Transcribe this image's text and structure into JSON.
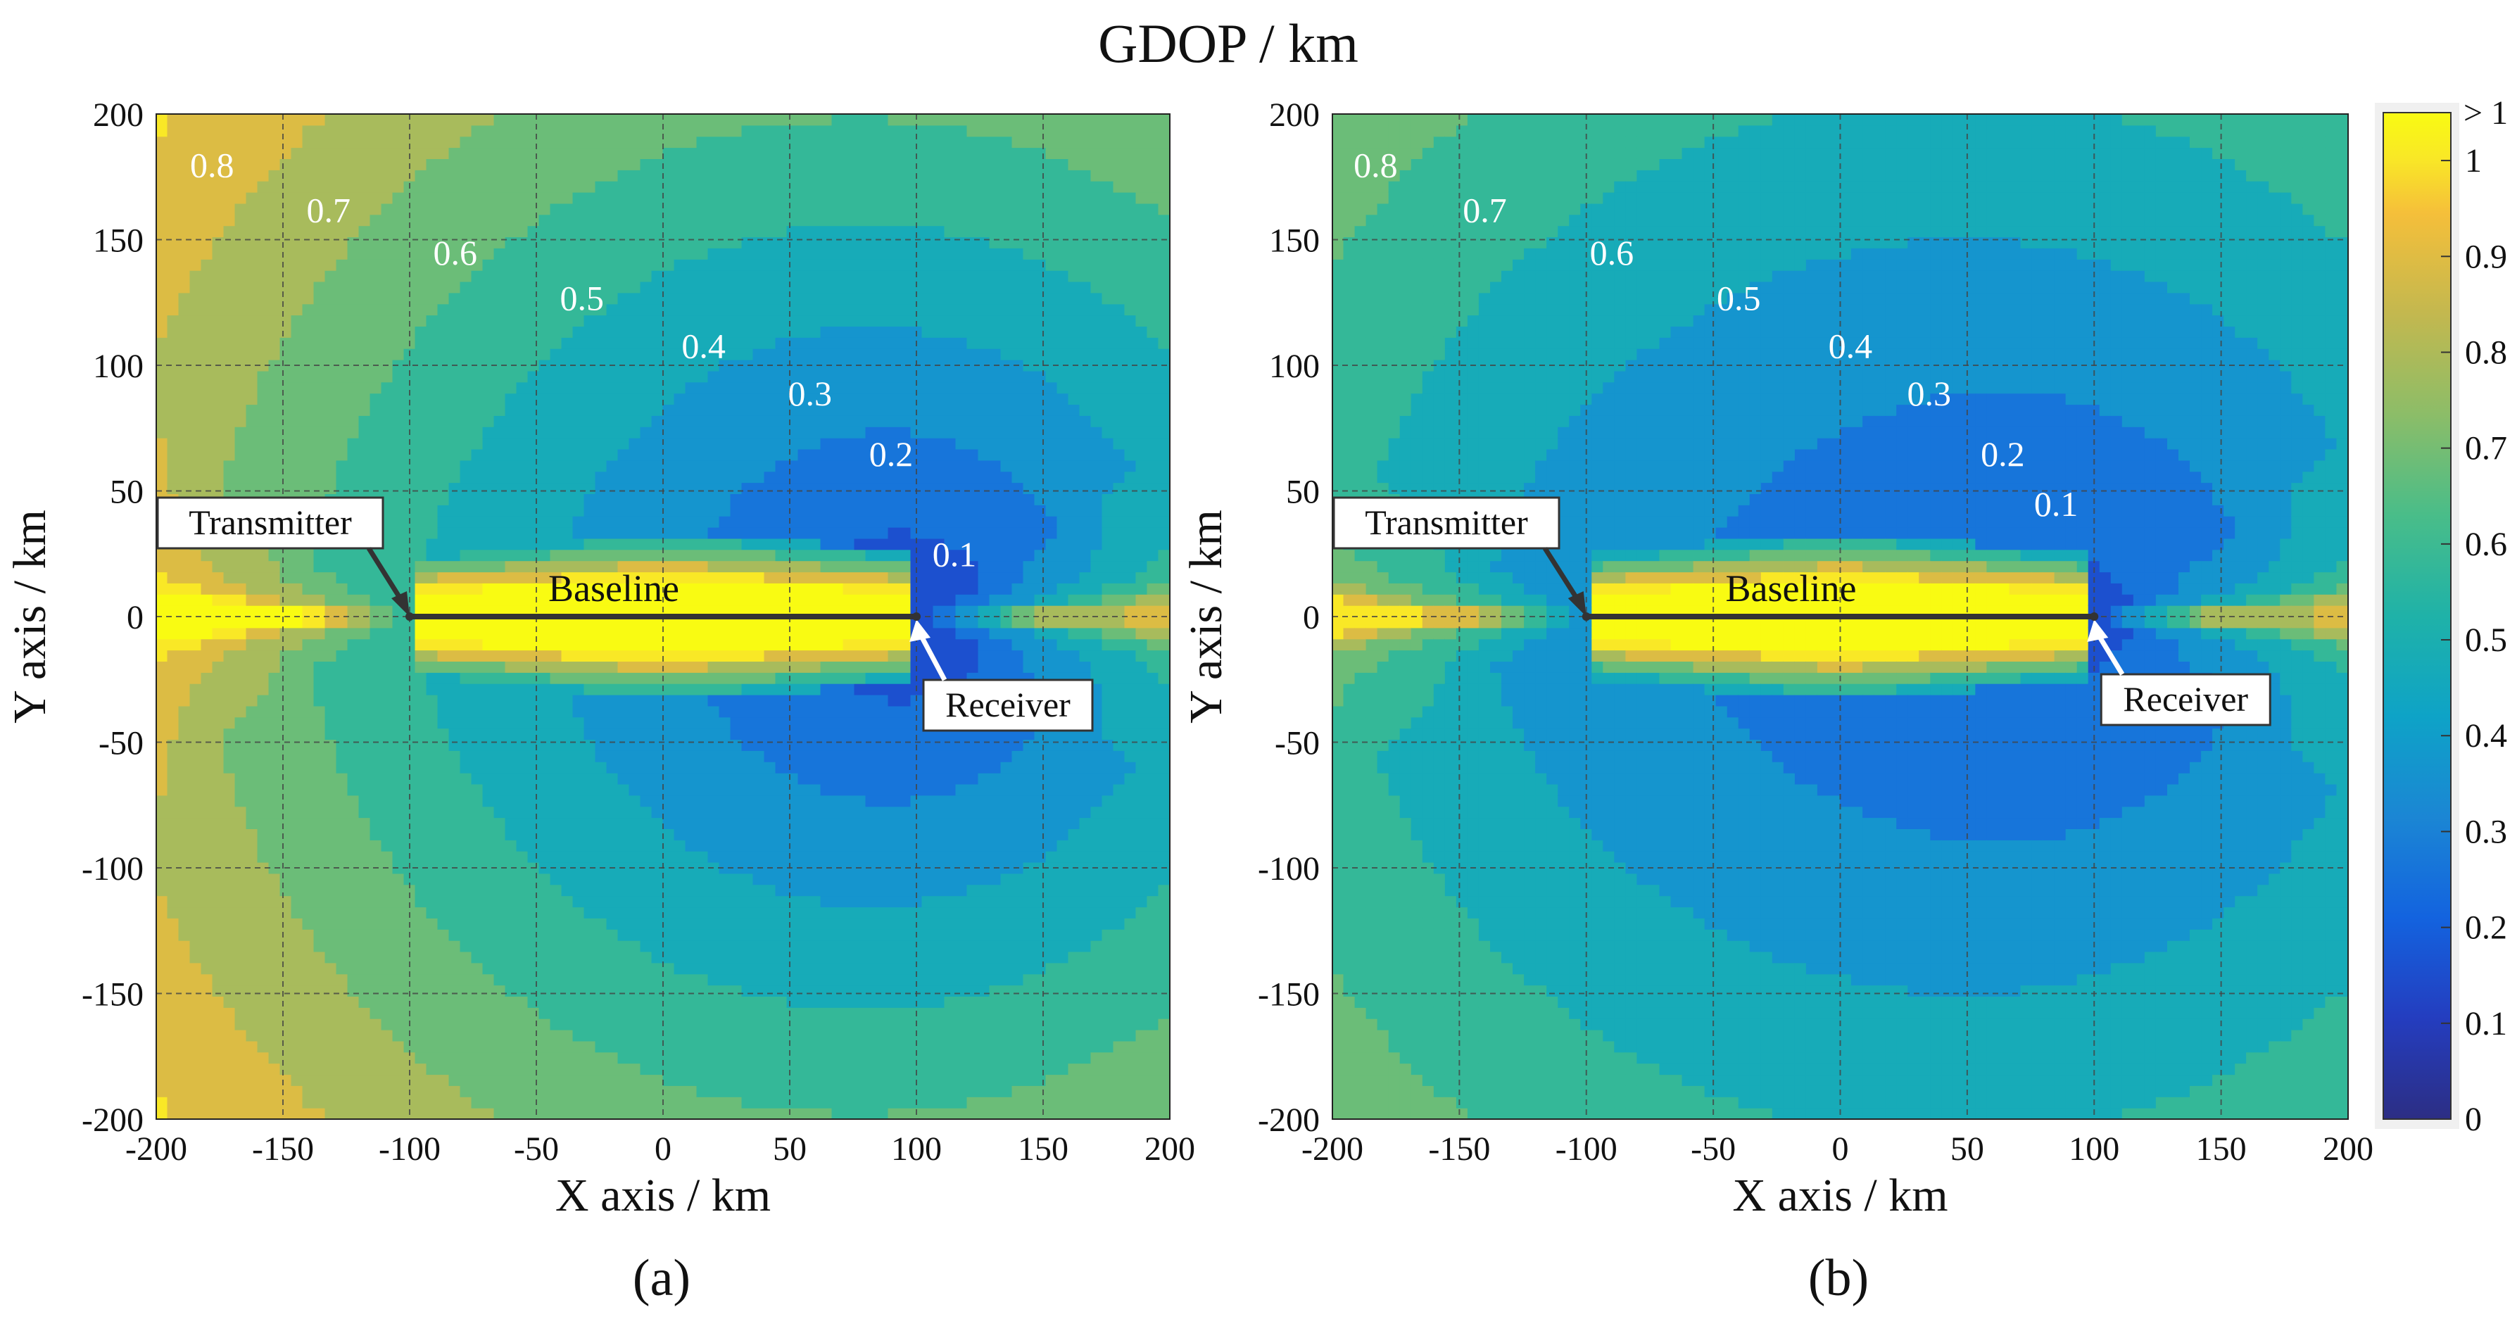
{
  "title": "GDOP / km",
  "chart_data": [
    {
      "type": "contour",
      "panel_label": "(a)",
      "xlabel": "X axis / km",
      "ylabel": "Y axis / km",
      "xlim": [
        -200,
        200
      ],
      "ylim": [
        -200,
        200
      ],
      "xticks": [
        -200,
        -150,
        -100,
        -50,
        0,
        50,
        100,
        150,
        200
      ],
      "yticks": [
        -200,
        -150,
        -100,
        -50,
        0,
        50,
        100,
        150,
        200
      ],
      "grid": true,
      "transmitter": {
        "label": "Transmitter",
        "x": -100,
        "y": 0
      },
      "receiver": {
        "label": "Receiver",
        "x": 100,
        "y": 0
      },
      "baseline_label": "Baseline",
      "contour_labels": [
        "0.1",
        "0.2",
        "0.3",
        "0.4",
        "0.5",
        "0.6",
        "0.7",
        "0.8"
      ],
      "contour_levels": [
        0.1,
        0.2,
        0.3,
        0.4,
        0.5,
        0.6,
        0.7,
        0.8,
        0.9,
        1.0
      ]
    },
    {
      "type": "contour",
      "panel_label": "(b)",
      "xlabel": "X axis / km",
      "ylabel": "Y axis / km",
      "xlim": [
        -200,
        200
      ],
      "ylim": [
        -200,
        200
      ],
      "xticks": [
        -200,
        -150,
        -100,
        -50,
        0,
        50,
        100,
        150,
        200
      ],
      "yticks": [
        -200,
        -150,
        -100,
        -50,
        0,
        50,
        100,
        150,
        200
      ],
      "grid": true,
      "transmitter": {
        "label": "Transmitter",
        "x": -100,
        "y": 0
      },
      "receiver": {
        "label": "Receiver",
        "x": 100,
        "y": 0
      },
      "baseline_label": "Baseline",
      "contour_labels": [
        "0.1",
        "0.2",
        "0.3",
        "0.4",
        "0.5",
        "0.6",
        "0.7",
        "0.8"
      ],
      "contour_levels": [
        0.1,
        0.2,
        0.3,
        0.4,
        0.5,
        0.6,
        0.7,
        0.8,
        0.9,
        1.0
      ]
    }
  ],
  "colorbar": {
    "ticks": [
      "0",
      "0.1",
      "0.2",
      "0.3",
      "0.4",
      "0.5",
      "0.6",
      "0.7",
      "0.8",
      "0.9",
      "1"
    ],
    "top_label": "> 1",
    "min": 0,
    "max": 1.05
  },
  "colors": {
    "low": "#2c2e84",
    "high": "#f9fb12",
    "contour_line": "#ffffff",
    "grid": "#444444"
  }
}
